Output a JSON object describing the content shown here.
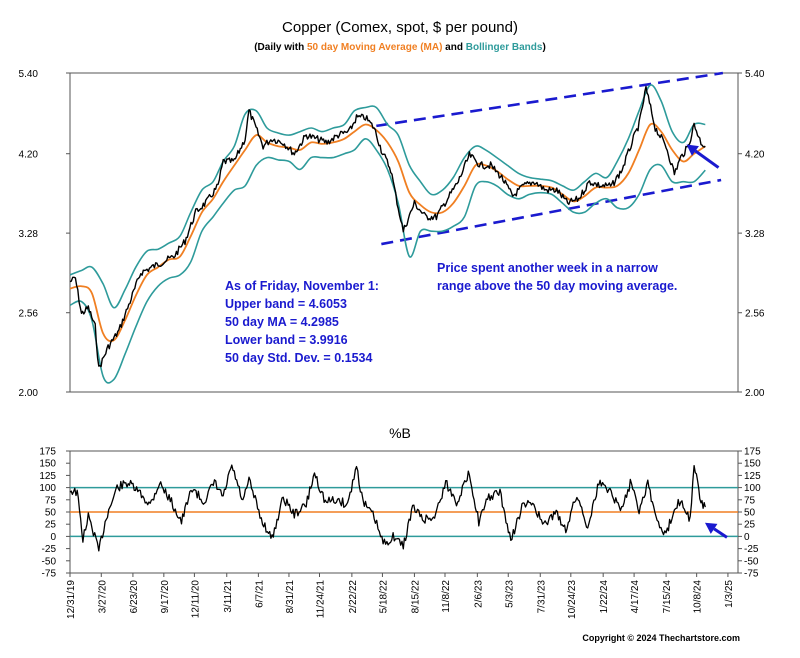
{
  "chart_data": [
    {
      "type": "line",
      "title": "Copper (Comex, spot, $ per pound)",
      "subtitle_parts": [
        {
          "text": "(Daily with ",
          "color": "#000000"
        },
        {
          "text": "50 day Moving Average (MA)",
          "color": "#f07f22"
        },
        {
          "text": " and ",
          "color": "#000000"
        },
        {
          "text": "Bollinger Bands",
          "color": "#2e9b9b"
        },
        {
          "text": ")",
          "color": "#000000"
        }
      ],
      "scale": "log",
      "ylim": [
        2.0,
        5.4
      ],
      "yticks": [
        "2.00",
        "2.56",
        "3.28",
        "4.20",
        "5.40"
      ],
      "ytick_values": [
        2.0,
        2.56,
        3.28,
        4.2,
        5.4
      ],
      "xlim": [
        "2019-12-31",
        "2025-01-31"
      ],
      "x_ticks": [
        "12/31/19",
        "3/27/20",
        "6/23/20",
        "9/17/20",
        "12/11/20",
        "3/11/21",
        "6/7/21",
        "8/31/21",
        "11/24/21",
        "2/22/22",
        "5/18/22",
        "8/15/22",
        "11/8/22",
        "2/6/23",
        "5/3/23",
        "7/31/23",
        "10/24/23",
        "1/22/24",
        "4/17/24",
        "7/15/24",
        "10/8/24",
        "1/3/25"
      ],
      "x_tick_dates": [
        "2019-12-31",
        "2020-03-27",
        "2020-06-23",
        "2020-09-17",
        "2020-12-11",
        "2021-03-11",
        "2021-06-07",
        "2021-08-31",
        "2021-11-24",
        "2022-02-22",
        "2022-05-18",
        "2022-08-15",
        "2022-11-08",
        "2023-02-06",
        "2023-05-03",
        "2023-07-31",
        "2023-10-24",
        "2024-01-22",
        "2024-04-17",
        "2024-07-15",
        "2024-10-08",
        "2025-01-03"
      ],
      "grid": false,
      "series": [
        {
          "name": "Copper",
          "color": "#000000",
          "style": "ohlc",
          "x": [
            "2019-12-31",
            "2020-01-15",
            "2020-02-01",
            "2020-02-20",
            "2020-03-10",
            "2020-03-20",
            "2020-04-15",
            "2020-05-15",
            "2020-06-15",
            "2020-07-15",
            "2020-08-15",
            "2020-09-15",
            "2020-10-15",
            "2020-11-15",
            "2020-12-15",
            "2021-01-15",
            "2021-02-15",
            "2021-03-01",
            "2021-04-01",
            "2021-05-01",
            "2021-05-12",
            "2021-06-20",
            "2021-07-15",
            "2021-08-15",
            "2021-09-15",
            "2021-10-18",
            "2021-11-15",
            "2021-12-15",
            "2022-01-15",
            "2022-02-15",
            "2022-03-07",
            "2022-04-01",
            "2022-04-25",
            "2022-05-15",
            "2022-06-10",
            "2022-07-01",
            "2022-07-15",
            "2022-08-15",
            "2022-09-15",
            "2022-10-15",
            "2022-11-15",
            "2022-12-15",
            "2023-01-15",
            "2023-02-15",
            "2023-03-15",
            "2023-04-15",
            "2023-05-15",
            "2023-06-15",
            "2023-07-15",
            "2023-08-15",
            "2023-09-15",
            "2023-10-15",
            "2023-11-15",
            "2023-12-15",
            "2024-01-15",
            "2024-02-15",
            "2024-03-15",
            "2024-04-15",
            "2024-05-01",
            "2024-05-20",
            "2024-06-15",
            "2024-07-15",
            "2024-08-07",
            "2024-08-25",
            "2024-09-15",
            "2024-10-01",
            "2024-10-20",
            "2024-11-01"
          ],
          "values": [
            2.82,
            2.85,
            2.55,
            2.6,
            2.45,
            2.15,
            2.3,
            2.42,
            2.65,
            2.9,
            2.95,
            3.0,
            3.05,
            3.2,
            3.5,
            3.62,
            3.8,
            4.1,
            4.1,
            4.4,
            4.8,
            4.3,
            4.4,
            4.35,
            4.2,
            4.45,
            4.4,
            4.35,
            4.45,
            4.5,
            4.7,
            4.7,
            4.55,
            4.25,
            4.0,
            3.55,
            3.3,
            3.6,
            3.45,
            3.45,
            3.65,
            3.85,
            4.18,
            4.05,
            4.05,
            3.9,
            3.68,
            3.8,
            3.85,
            3.75,
            3.75,
            3.6,
            3.65,
            3.85,
            3.8,
            3.8,
            4.0,
            4.4,
            4.6,
            5.15,
            4.55,
            4.3,
            3.95,
            4.15,
            4.3,
            4.6,
            4.35,
            4.3
          ]
        },
        {
          "name": "50 day Moving Average (MA)",
          "color": "#f07f22",
          "x": [
            "2019-12-31",
            "2020-02-01",
            "2020-03-01",
            "2020-04-01",
            "2020-05-01",
            "2020-06-01",
            "2020-07-01",
            "2020-08-01",
            "2020-09-01",
            "2020-10-01",
            "2020-11-01",
            "2020-12-01",
            "2021-01-01",
            "2021-02-01",
            "2021-03-01",
            "2021-04-01",
            "2021-05-01",
            "2021-06-01",
            "2021-07-01",
            "2021-08-01",
            "2021-09-01",
            "2021-10-01",
            "2021-11-01",
            "2021-12-01",
            "2022-01-01",
            "2022-02-01",
            "2022-03-01",
            "2022-04-01",
            "2022-05-01",
            "2022-06-01",
            "2022-07-01",
            "2022-08-01",
            "2022-09-01",
            "2022-10-01",
            "2022-11-01",
            "2022-12-01",
            "2023-01-01",
            "2023-02-01",
            "2023-03-01",
            "2023-04-01",
            "2023-05-01",
            "2023-06-01",
            "2023-07-01",
            "2023-08-01",
            "2023-09-01",
            "2023-10-01",
            "2023-11-01",
            "2023-12-01",
            "2024-01-01",
            "2024-02-01",
            "2024-03-01",
            "2024-04-01",
            "2024-05-01",
            "2024-06-01",
            "2024-07-01",
            "2024-08-01",
            "2024-09-01",
            "2024-10-01",
            "2024-11-01"
          ],
          "values": [
            2.76,
            2.78,
            2.72,
            2.4,
            2.35,
            2.5,
            2.7,
            2.88,
            2.95,
            3.02,
            3.05,
            3.25,
            3.5,
            3.65,
            3.85,
            4.05,
            4.25,
            4.45,
            4.35,
            4.3,
            4.28,
            4.25,
            4.35,
            4.33,
            4.35,
            4.4,
            4.5,
            4.6,
            4.52,
            4.35,
            4.1,
            3.72,
            3.58,
            3.5,
            3.5,
            3.6,
            3.8,
            4.05,
            4.05,
            3.98,
            3.88,
            3.8,
            3.8,
            3.8,
            3.78,
            3.7,
            3.62,
            3.68,
            3.78,
            3.78,
            3.8,
            3.95,
            4.25,
            4.6,
            4.5,
            4.25,
            4.1,
            4.2,
            4.3
          ]
        },
        {
          "name": "Upper band",
          "color": "#2e9b9b",
          "x": [
            "2019-12-31",
            "2020-02-01",
            "2020-03-01",
            "2020-04-01",
            "2020-05-01",
            "2020-06-01",
            "2020-07-01",
            "2020-08-01",
            "2020-09-01",
            "2020-10-01",
            "2020-11-01",
            "2020-12-01",
            "2021-01-01",
            "2021-02-01",
            "2021-03-01",
            "2021-04-01",
            "2021-05-01",
            "2021-06-01",
            "2021-07-01",
            "2021-08-01",
            "2021-09-01",
            "2021-10-01",
            "2021-11-01",
            "2021-12-01",
            "2022-01-01",
            "2022-02-01",
            "2022-03-01",
            "2022-04-01",
            "2022-05-01",
            "2022-06-01",
            "2022-07-01",
            "2022-08-01",
            "2022-09-01",
            "2022-10-01",
            "2022-11-01",
            "2022-12-01",
            "2023-01-01",
            "2023-02-01",
            "2023-03-01",
            "2023-04-01",
            "2023-05-01",
            "2023-06-01",
            "2023-07-01",
            "2023-08-01",
            "2023-09-01",
            "2023-10-01",
            "2023-11-01",
            "2023-12-01",
            "2024-01-01",
            "2024-02-01",
            "2024-03-01",
            "2024-04-01",
            "2024-05-01",
            "2024-06-01",
            "2024-07-01",
            "2024-08-01",
            "2024-09-01",
            "2024-10-01",
            "2024-11-01"
          ],
          "values": [
            2.88,
            2.92,
            2.95,
            2.8,
            2.6,
            2.75,
            2.95,
            3.1,
            3.12,
            3.18,
            3.25,
            3.5,
            3.75,
            3.85,
            4.1,
            4.3,
            4.75,
            4.8,
            4.55,
            4.48,
            4.45,
            4.5,
            4.55,
            4.5,
            4.55,
            4.6,
            4.8,
            4.85,
            4.85,
            4.6,
            4.45,
            4.05,
            3.85,
            3.7,
            3.75,
            3.9,
            4.15,
            4.3,
            4.25,
            4.15,
            4.05,
            3.95,
            3.9,
            3.88,
            3.86,
            3.8,
            3.75,
            3.85,
            3.95,
            3.9,
            4.1,
            4.4,
            4.8,
            5.2,
            4.95,
            4.5,
            4.35,
            4.6,
            4.6
          ]
        },
        {
          "name": "Lower band",
          "color": "#2e9b9b",
          "x": [
            "2019-12-31",
            "2020-02-01",
            "2020-03-01",
            "2020-04-01",
            "2020-05-01",
            "2020-06-01",
            "2020-07-01",
            "2020-08-01",
            "2020-09-01",
            "2020-10-01",
            "2020-11-01",
            "2020-12-01",
            "2021-01-01",
            "2021-02-01",
            "2021-03-01",
            "2021-04-01",
            "2021-05-01",
            "2021-06-01",
            "2021-07-01",
            "2021-08-01",
            "2021-09-01",
            "2021-10-01",
            "2021-11-01",
            "2021-12-01",
            "2022-01-01",
            "2022-02-01",
            "2022-03-01",
            "2022-04-01",
            "2022-05-01",
            "2022-06-01",
            "2022-07-01",
            "2022-08-01",
            "2022-09-01",
            "2022-10-01",
            "2022-11-01",
            "2022-12-01",
            "2023-01-01",
            "2023-02-01",
            "2023-03-01",
            "2023-04-01",
            "2023-05-01",
            "2023-06-01",
            "2023-07-01",
            "2023-08-01",
            "2023-09-01",
            "2023-10-01",
            "2023-11-01",
            "2023-12-01",
            "2024-01-01",
            "2024-02-01",
            "2024-03-01",
            "2024-04-01",
            "2024-05-01",
            "2024-06-01",
            "2024-07-01",
            "2024-08-01",
            "2024-09-01",
            "2024-10-01",
            "2024-11-01"
          ],
          "values": [
            2.62,
            2.65,
            2.5,
            2.1,
            2.08,
            2.25,
            2.45,
            2.65,
            2.78,
            2.85,
            2.88,
            3.0,
            3.3,
            3.45,
            3.6,
            3.75,
            3.8,
            4.05,
            4.15,
            4.12,
            4.1,
            4.0,
            4.15,
            4.15,
            4.15,
            4.2,
            4.25,
            4.4,
            4.25,
            4.0,
            3.6,
            3.05,
            3.3,
            3.3,
            3.3,
            3.35,
            3.45,
            3.8,
            3.85,
            3.8,
            3.7,
            3.65,
            3.7,
            3.72,
            3.7,
            3.6,
            3.5,
            3.5,
            3.6,
            3.65,
            3.55,
            3.55,
            3.7,
            4.0,
            4.05,
            3.85,
            3.85,
            3.85,
            3.99
          ]
        }
      ],
      "trend_channel": {
        "color": "#1a1acf",
        "upper": {
          "x": [
            "2022-05-01",
            "2024-12-20"
          ],
          "values": [
            4.58,
            5.4
          ]
        },
        "lower": {
          "x": [
            "2022-05-15",
            "2024-12-15"
          ],
          "values": [
            3.17,
            3.87
          ]
        }
      },
      "annotations": [
        {
          "text": "As of Friday, November 1:",
          "color": "#1a1acf"
        },
        {
          "text": "Upper band = 4.6053",
          "color": "#1a1acf"
        },
        {
          "text": "50 day MA = 4.2985",
          "color": "#1a1acf"
        },
        {
          "text": "Lower band = 3.9916",
          "color": "#1a1acf"
        },
        {
          "text": "50 day Std. Dev. = 0.1534",
          "color": "#1a1acf"
        },
        {
          "text": "Price spent another week in a narrow",
          "color": "#1a1acf"
        },
        {
          "text": "range above the 50 day moving average.",
          "color": "#1a1acf"
        }
      ],
      "arrow": {
        "color": "#1a1acf",
        "x": "2024-11-10",
        "y": 4.15
      }
    },
    {
      "type": "line",
      "title": "%B",
      "ylim": [
        -75,
        175
      ],
      "yticks": [
        "175",
        "150",
        "125",
        "100",
        "75",
        "50",
        "25",
        "0",
        "-25",
        "-50",
        "-75"
      ],
      "ytick_values": [
        175,
        150,
        125,
        100,
        75,
        50,
        25,
        0,
        -25,
        -50,
        -75
      ],
      "reference_lines": [
        {
          "value": 100,
          "color": "#2e9b9b"
        },
        {
          "value": 50,
          "color": "#f07f22"
        },
        {
          "value": 0,
          "color": "#2e9b9b"
        }
      ],
      "series": [
        {
          "name": "%B",
          "color": "#000000",
          "x": [
            "2019-12-31",
            "2020-01-20",
            "2020-02-05",
            "2020-02-20",
            "2020-03-05",
            "2020-03-20",
            "2020-04-10",
            "2020-05-10",
            "2020-06-10",
            "2020-07-10",
            "2020-08-10",
            "2020-09-05",
            "2020-10-05",
            "2020-11-05",
            "2020-12-05",
            "2021-01-05",
            "2021-02-05",
            "2021-03-01",
            "2021-03-25",
            "2021-04-25",
            "2021-05-12",
            "2021-06-15",
            "2021-07-15",
            "2021-08-15",
            "2021-09-15",
            "2021-10-18",
            "2021-11-10",
            "2021-12-10",
            "2022-01-10",
            "2022-02-10",
            "2022-03-07",
            "2022-03-25",
            "2022-04-25",
            "2022-05-20",
            "2022-06-20",
            "2022-07-15",
            "2022-08-10",
            "2022-09-10",
            "2022-10-10",
            "2022-11-10",
            "2022-12-10",
            "2023-01-15",
            "2023-02-10",
            "2023-03-10",
            "2023-04-10",
            "2023-05-10",
            "2023-06-10",
            "2023-07-10",
            "2023-08-10",
            "2023-09-10",
            "2023-10-10",
            "2023-11-10",
            "2023-12-10",
            "2024-01-10",
            "2024-02-10",
            "2024-03-10",
            "2024-04-10",
            "2024-05-01",
            "2024-05-25",
            "2024-06-20",
            "2024-07-15",
            "2024-08-07",
            "2024-08-25",
            "2024-09-20",
            "2024-10-01",
            "2024-10-20",
            "2024-11-01"
          ],
          "values": [
            95,
            90,
            -5,
            40,
            10,
            -30,
            40,
            100,
            110,
            90,
            65,
            110,
            75,
            30,
            100,
            70,
            110,
            80,
            145,
            70,
            115,
            35,
            -5,
            80,
            45,
            65,
            130,
            70,
            75,
            65,
            145,
            70,
            40,
            -15,
            0,
            -20,
            60,
            35,
            40,
            110,
            70,
            130,
            30,
            80,
            90,
            -10,
            60,
            70,
            20,
            50,
            15,
            85,
            20,
            110,
            95,
            55,
            115,
            55,
            110,
            30,
            0,
            60,
            75,
            35,
            145,
            70,
            60
          ]
        }
      ]
    }
  ],
  "copyright": "Copyright © 2024 Thechartstore.com"
}
